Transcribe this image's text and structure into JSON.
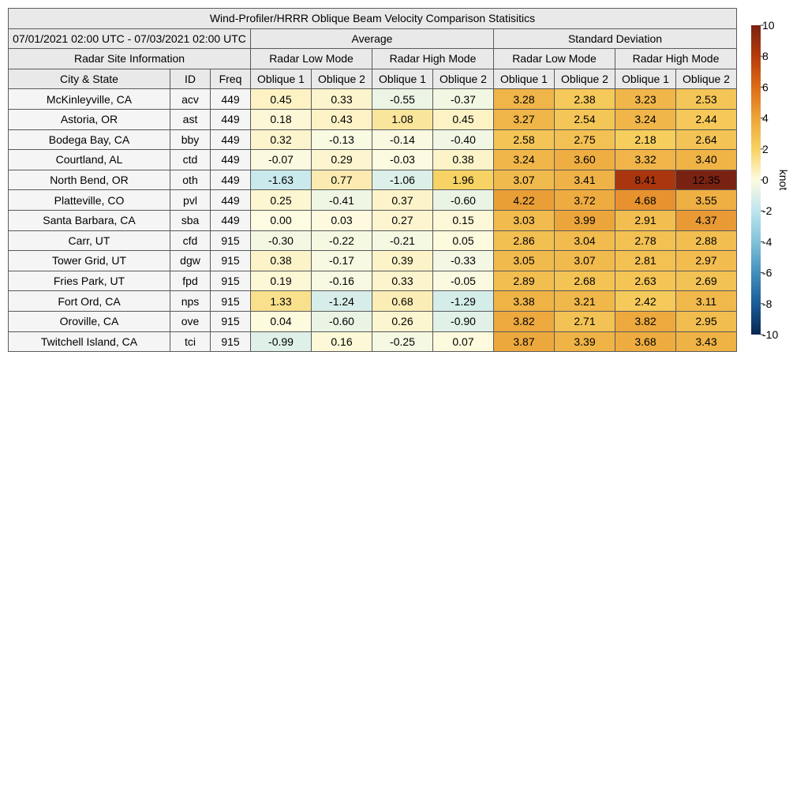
{
  "title": "Wind-Profiler/HRRR Oblique Beam Velocity Comparison Statisitics",
  "date_range": "07/01/2021 02:00 UTC - 07/03/2021 02:00 UTC",
  "groups": {
    "average": "Average",
    "std": "Standard Deviation"
  },
  "site_info_label": "Radar Site Information",
  "modes": {
    "low": "Radar Low Mode",
    "high": "Radar High Mode"
  },
  "columns": {
    "city": "City & State",
    "id": "ID",
    "freq": "Freq",
    "ob1": "Oblique 1",
    "ob2": "Oblique 2"
  },
  "colorbar": {
    "label": "knot",
    "min": -10,
    "max": 10,
    "ticks": [
      "10",
      "8",
      "6",
      "4",
      "2",
      "0",
      "-2",
      "-4",
      "-6",
      "-8",
      "-10"
    ]
  },
  "chart_data": {
    "type": "table",
    "title": "Wind-Profiler/HRRR Oblique Beam Velocity Comparison Statisitics",
    "value_columns": [
      "Average / Radar Low Mode / Oblique 1",
      "Average / Radar Low Mode / Oblique 2",
      "Average / Radar High Mode / Oblique 1",
      "Average / Radar High Mode / Oblique 2",
      "Standard Deviation / Radar Low Mode / Oblique 1",
      "Standard Deviation / Radar Low Mode / Oblique 2",
      "Standard Deviation / Radar High Mode / Oblique 1",
      "Standard Deviation / Radar High Mode / Oblique 2"
    ],
    "rows": [
      {
        "city": "McKinleyville, CA",
        "id": "acv",
        "freq": "449",
        "values": [
          "0.45",
          "0.33",
          "-0.55",
          "-0.37",
          "3.28",
          "2.38",
          "3.23",
          "2.53"
        ]
      },
      {
        "city": "Astoria, OR",
        "id": "ast",
        "freq": "449",
        "values": [
          "0.18",
          "0.43",
          "1.08",
          "0.45",
          "3.27",
          "2.54",
          "3.24",
          "2.44"
        ]
      },
      {
        "city": "Bodega Bay, CA",
        "id": "bby",
        "freq": "449",
        "values": [
          "0.32",
          "-0.13",
          "-0.14",
          "-0.40",
          "2.58",
          "2.75",
          "2.18",
          "2.64"
        ]
      },
      {
        "city": "Courtland, AL",
        "id": "ctd",
        "freq": "449",
        "values": [
          "-0.07",
          "0.29",
          "-0.03",
          "0.38",
          "3.24",
          "3.60",
          "3.32",
          "3.40"
        ]
      },
      {
        "city": "North Bend, OR",
        "id": "oth",
        "freq": "449",
        "values": [
          "-1.63",
          "0.77",
          "-1.06",
          "1.96",
          "3.07",
          "3.41",
          "8.41",
          "12.35"
        ]
      },
      {
        "city": "Platteville, CO",
        "id": "pvl",
        "freq": "449",
        "values": [
          "0.25",
          "-0.41",
          "0.37",
          "-0.60",
          "4.22",
          "3.72",
          "4.68",
          "3.55"
        ]
      },
      {
        "city": "Santa Barbara, CA",
        "id": "sba",
        "freq": "449",
        "values": [
          "0.00",
          "0.03",
          "0.27",
          "0.15",
          "3.03",
          "3.99",
          "2.91",
          "4.37"
        ]
      },
      {
        "city": "Carr, UT",
        "id": "cfd",
        "freq": "915",
        "values": [
          "-0.30",
          "-0.22",
          "-0.21",
          "0.05",
          "2.86",
          "3.04",
          "2.78",
          "2.88"
        ]
      },
      {
        "city": "Tower Grid, UT",
        "id": "dgw",
        "freq": "915",
        "values": [
          "0.38",
          "-0.17",
          "0.39",
          "-0.33",
          "3.05",
          "3.07",
          "2.81",
          "2.97"
        ]
      },
      {
        "city": "Fries Park, UT",
        "id": "fpd",
        "freq": "915",
        "values": [
          "0.19",
          "-0.16",
          "0.33",
          "-0.05",
          "2.89",
          "2.68",
          "2.63",
          "2.69"
        ]
      },
      {
        "city": "Fort Ord, CA",
        "id": "nps",
        "freq": "915",
        "values": [
          "1.33",
          "-1.24",
          "0.68",
          "-1.29",
          "3.38",
          "3.21",
          "2.42",
          "3.11"
        ]
      },
      {
        "city": "Oroville, CA",
        "id": "ove",
        "freq": "915",
        "values": [
          "0.04",
          "-0.60",
          "0.26",
          "-0.90",
          "3.82",
          "2.71",
          "3.82",
          "2.95"
        ]
      },
      {
        "city": "Twitchell Island, CA",
        "id": "tci",
        "freq": "915",
        "values": [
          "-0.99",
          "0.16",
          "-0.25",
          "0.07",
          "3.87",
          "3.39",
          "3.68",
          "3.43"
        ]
      }
    ]
  }
}
